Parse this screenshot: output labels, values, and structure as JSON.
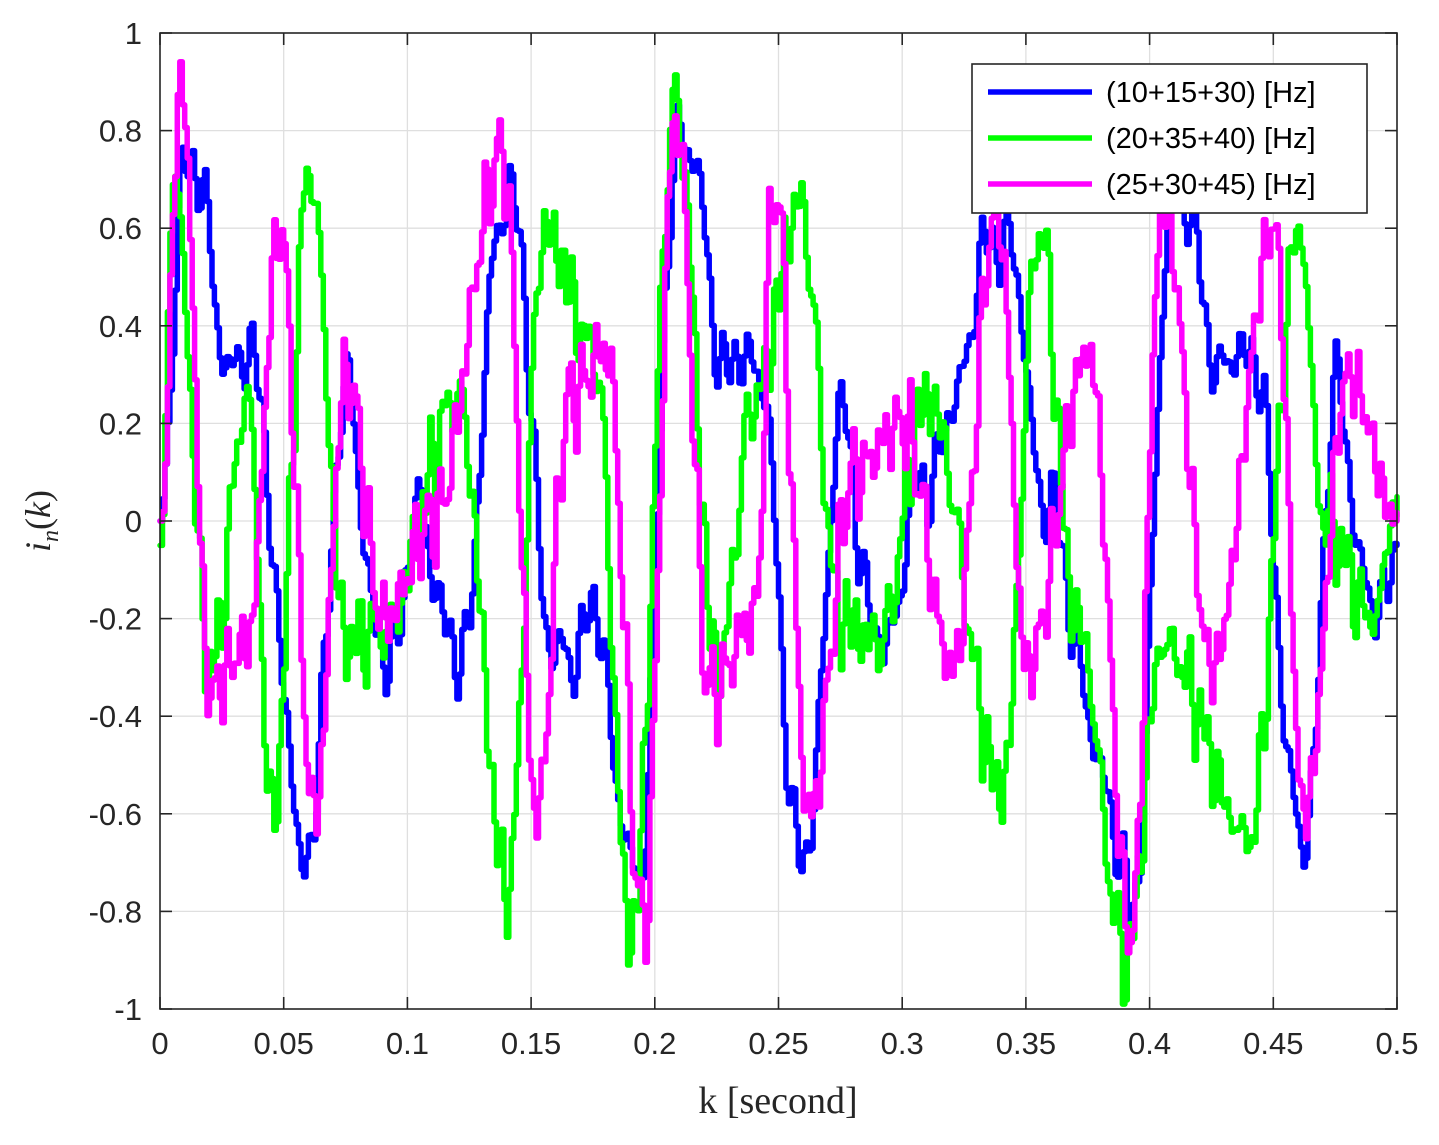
{
  "chart_data": {
    "type": "line",
    "xlabel": "k [second]",
    "ylabel": "i_n(k)",
    "xlim": [
      0,
      0.5
    ],
    "ylim": [
      -1,
      1
    ],
    "xticks": [
      0,
      0.05,
      0.1,
      0.15,
      0.2,
      0.25,
      0.3,
      0.35,
      0.4,
      0.45,
      0.5
    ],
    "xtick_labels": [
      "0",
      "0.05",
      "0.1",
      "0.15",
      "0.2",
      "0.25",
      "0.3",
      "0.35",
      "0.4",
      "0.45",
      "0.5"
    ],
    "yticks": [
      -1,
      -0.8,
      -0.6,
      -0.4,
      -0.2,
      0,
      0.2,
      0.4,
      0.6,
      0.8,
      1
    ],
    "ytick_labels": [
      "-1",
      "-0.8",
      "-0.6",
      "-0.4",
      "-0.2",
      "0",
      "0.2",
      "0.4",
      "0.6",
      "0.8",
      "1"
    ],
    "grid": true,
    "legend_position": "top-right",
    "series": [
      {
        "name": "(10+15+30) [Hz]",
        "color": "#0000ff",
        "freqs": [
          10,
          15,
          30
        ],
        "x": [
          0,
          0.01,
          0.03,
          0.038,
          0.05,
          0.058,
          0.075,
          0.09,
          0.105,
          0.12,
          0.14,
          0.16,
          0.175,
          0.192,
          0.21,
          0.23,
          0.24,
          0.26,
          0.275,
          0.29,
          0.31,
          0.34,
          0.36,
          0.38,
          0.392,
          0.41,
          0.43,
          0.44,
          0.462,
          0.475,
          0.49,
          0.5
        ],
        "y": [
          0.0,
          0.77,
          0.3,
          0.35,
          -0.35,
          -0.74,
          0.25,
          -0.3,
          0.0,
          -0.3,
          0.7,
          -0.3,
          -0.2,
          -0.75,
          0.82,
          0.3,
          0.35,
          -0.72,
          0.2,
          -0.27,
          0.1,
          0.6,
          0.0,
          -0.5,
          -0.8,
          0.7,
          0.3,
          0.37,
          -0.68,
          0.25,
          -0.2,
          -0.05
        ]
      },
      {
        "name": "(20+35+40) [Hz]",
        "color": "#00ff00",
        "freqs": [
          20,
          35,
          40
        ],
        "x": [
          0,
          0.005,
          0.02,
          0.035,
          0.045,
          0.06,
          0.075,
          0.09,
          0.12,
          0.14,
          0.155,
          0.175,
          0.19,
          0.208,
          0.225,
          0.24,
          0.258,
          0.275,
          0.29,
          0.31,
          0.34,
          0.355,
          0.37,
          0.39,
          0.405,
          0.44,
          0.46,
          0.47,
          0.49,
          0.5
        ],
        "y": [
          -0.05,
          0.7,
          -0.3,
          0.25,
          -0.6,
          0.72,
          -0.25,
          -0.22,
          0.25,
          -0.75,
          0.6,
          0.35,
          -0.85,
          0.85,
          -0.3,
          0.25,
          0.65,
          -0.2,
          -0.25,
          0.25,
          -0.55,
          0.6,
          -0.2,
          -0.9,
          -0.25,
          -0.65,
          0.6,
          0.0,
          -0.2,
          0.05
        ]
      },
      {
        "name": "(25+30+45) [Hz]",
        "color": "#ff00ff",
        "freqs": [
          25,
          30,
          45
        ],
        "x": [
          0,
          0.008,
          0.02,
          0.035,
          0.048,
          0.062,
          0.075,
          0.09,
          0.11,
          0.138,
          0.152,
          0.165,
          0.18,
          0.195,
          0.208,
          0.222,
          0.24,
          0.248,
          0.262,
          0.28,
          0.3,
          0.32,
          0.338,
          0.35,
          0.375,
          0.392,
          0.405,
          0.425,
          0.45,
          0.462,
          0.48,
          0.5
        ],
        "y": [
          0.0,
          0.9,
          -0.35,
          -0.25,
          0.6,
          -0.6,
          0.3,
          -0.2,
          0.0,
          0.75,
          -0.6,
          0.25,
          0.35,
          -0.83,
          0.83,
          -0.35,
          -0.2,
          0.7,
          -0.6,
          0.1,
          0.2,
          -0.3,
          0.65,
          -0.3,
          0.35,
          -0.85,
          0.65,
          -0.3,
          0.6,
          -0.6,
          0.3,
          0.0
        ]
      }
    ]
  }
}
